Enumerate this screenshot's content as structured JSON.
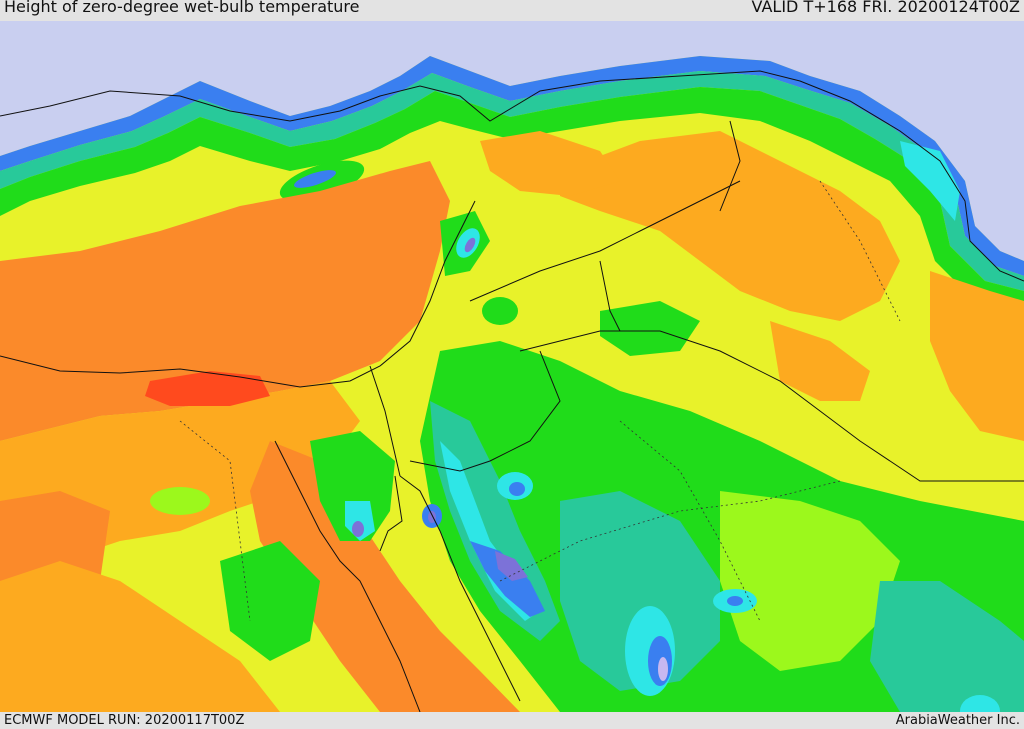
{
  "header": {
    "title": "Height of zero-degree wet-bulb temperature",
    "valid": "VALID T+168 FRI. 20200124T00Z"
  },
  "footer": {
    "model_run": "ECMWF MODEL RUN: 20200117T00Z",
    "credit": "ArabiaWeather Inc."
  },
  "map": {
    "colors": {
      "sea": "#c9cff0",
      "red": "#ff4a1e",
      "deep_orange": "#fb8a2a",
      "orange": "#fdaa1f",
      "yellow": "#e8f22a",
      "yellow_green": "#9cf81c",
      "green": "#20dc1a",
      "teal": "#28c99a",
      "cyan": "#2ee6e6",
      "blue": "#3a7ff0",
      "violet": "#7c72d8",
      "lavender": "#c8b8f0"
    }
  }
}
